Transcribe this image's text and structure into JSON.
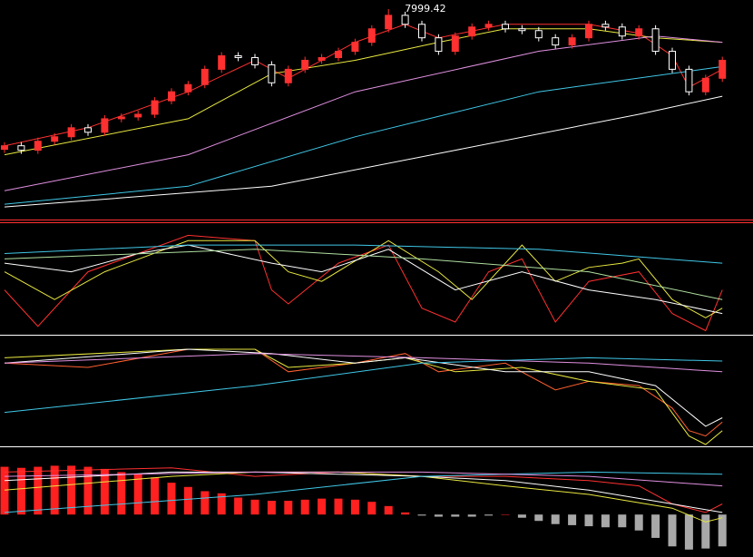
{
  "chart_data": [
    {
      "type": "candlestick",
      "annotation": "7999.42",
      "up_color": "#ff3030",
      "down_color": "#ffffff",
      "ylim": [
        6840,
        8040
      ],
      "open": [
        7220,
        7240,
        7215,
        7265,
        7290,
        7340,
        7315,
        7390,
        7400,
        7415,
        7490,
        7540,
        7580,
        7665,
        7740,
        7730,
        7690,
        7590,
        7665,
        7715,
        7730,
        7765,
        7815,
        7890,
        7965,
        7915,
        7840,
        7765,
        7850,
        7900,
        7915,
        7890,
        7880,
        7840,
        7800,
        7840,
        7915,
        7900,
        7850,
        7890,
        7765,
        7665,
        7540,
        7615
      ],
      "high": [
        7260,
        7260,
        7285,
        7310,
        7360,
        7360,
        7410,
        7420,
        7435,
        7510,
        7560,
        7600,
        7685,
        7760,
        7760,
        7750,
        7710,
        7685,
        7735,
        7750,
        7785,
        7835,
        7910,
        7999.42,
        7985,
        7935,
        7860,
        7870,
        7920,
        7935,
        7935,
        7910,
        7900,
        7860,
        7860,
        7935,
        7935,
        7920,
        7910,
        7910,
        7785,
        7685,
        7635,
        7735
      ],
      "low": [
        7200,
        7195,
        7195,
        7245,
        7270,
        7295,
        7295,
        7370,
        7380,
        7395,
        7470,
        7520,
        7560,
        7645,
        7710,
        7670,
        7570,
        7570,
        7645,
        7695,
        7710,
        7745,
        7795,
        7870,
        7895,
        7820,
        7745,
        7745,
        7830,
        7880,
        7870,
        7860,
        7820,
        7780,
        7780,
        7820,
        7880,
        7830,
        7830,
        7745,
        7645,
        7520,
        7520,
        7595
      ],
      "close": [
        7240,
        7215,
        7265,
        7290,
        7340,
        7315,
        7390,
        7400,
        7415,
        7490,
        7540,
        7580,
        7665,
        7740,
        7730,
        7690,
        7590,
        7665,
        7715,
        7730,
        7765,
        7815,
        7890,
        7965,
        7915,
        7840,
        7765,
        7850,
        7900,
        7915,
        7890,
        7880,
        7840,
        7800,
        7840,
        7915,
        7900,
        7850,
        7890,
        7765,
        7665,
        7540,
        7615,
        7715
      ],
      "series": [
        {
          "color": "#ff3030",
          "x": [
            0,
            5,
            11,
            15,
            17,
            21,
            24,
            26,
            30,
            35,
            38,
            40,
            41,
            43
          ],
          "values": [
            7240,
            7340,
            7540,
            7715,
            7615,
            7815,
            7915,
            7840,
            7915,
            7915,
            7865,
            7740,
            7565,
            7665
          ]
        },
        {
          "color": "#e8e840",
          "x": [
            0,
            11,
            16,
            21,
            26,
            30,
            35,
            39,
            43
          ],
          "values": [
            7190,
            7390,
            7640,
            7715,
            7815,
            7890,
            7890,
            7840,
            7815
          ]
        },
        {
          "color": "#e090e0",
          "x": [
            0,
            11,
            21,
            32,
            39,
            43
          ],
          "values": [
            6990,
            7190,
            7540,
            7765,
            7850,
            7815
          ]
        },
        {
          "color": "#40c8e8",
          "x": [
            0,
            11,
            21,
            32,
            43
          ],
          "values": [
            6915,
            7015,
            7290,
            7540,
            7680
          ]
        },
        {
          "color": "#ffffff",
          "x": [
            0,
            16,
            27,
            38,
            43
          ],
          "values": [
            6900,
            7015,
            7215,
            7415,
            7515
          ]
        }
      ]
    },
    {
      "type": "line",
      "ylim": [
        0,
        100
      ],
      "series": [
        {
          "color": "#ff3030",
          "x": [
            0,
            2,
            5,
            11,
            15,
            16,
            17,
            20,
            23,
            25,
            27,
            29,
            31,
            33,
            35,
            38,
            40,
            42,
            43
          ],
          "values": [
            41,
            7,
            58,
            92,
            87,
            41,
            28,
            66,
            83,
            24,
            11,
            58,
            70,
            11,
            49,
            58,
            19,
            3,
            41
          ]
        },
        {
          "color": "#e8e840",
          "x": [
            0,
            3,
            6,
            11,
            15,
            17,
            19,
            23,
            26,
            28,
            31,
            33,
            35,
            37,
            38,
            40,
            42,
            43
          ],
          "values": [
            58,
            32,
            58,
            87,
            87,
            58,
            49,
            87,
            58,
            32,
            83,
            49,
            62,
            66,
            70,
            32,
            15,
            24
          ]
        },
        {
          "color": "#ffffff",
          "x": [
            0,
            4,
            8,
            11,
            16,
            19,
            23,
            27,
            31,
            35,
            39,
            43
          ],
          "values": [
            66,
            58,
            75,
            83,
            66,
            58,
            79,
            41,
            58,
            41,
            32,
            19
          ]
        },
        {
          "color": "#40c8e8",
          "x": [
            0,
            11,
            21,
            32,
            43
          ],
          "values": [
            75,
            83,
            83,
            79,
            66
          ]
        },
        {
          "color": "#b0e0a0",
          "x": [
            0,
            15,
            25,
            35,
            43
          ],
          "values": [
            70,
            79,
            70,
            58,
            32
          ]
        }
      ]
    },
    {
      "type": "line",
      "ylim": [
        0,
        100
      ],
      "series": [
        {
          "color": "#ff6030",
          "x": [
            0,
            5,
            11,
            15,
            17,
            21,
            24,
            26,
            30,
            33,
            35,
            38,
            40,
            41,
            42,
            43
          ],
          "values": [
            76,
            72,
            89,
            89,
            68,
            76,
            85,
            68,
            76,
            51,
            59,
            55,
            34,
            13,
            8,
            21
          ]
        },
        {
          "color": "#e8e840",
          "x": [
            0,
            11,
            15,
            17,
            21,
            24,
            27,
            31,
            35,
            39,
            41,
            42,
            43
          ],
          "values": [
            81,
            89,
            89,
            72,
            76,
            81,
            68,
            72,
            59,
            51,
            8,
            0,
            13
          ]
        },
        {
          "color": "#ffffff",
          "x": [
            0,
            11,
            16,
            21,
            24,
            30,
            35,
            39,
            42,
            43
          ],
          "values": [
            76,
            89,
            85,
            76,
            81,
            68,
            68,
            55,
            17,
            25
          ]
        },
        {
          "color": "#e090e0",
          "x": [
            0,
            15,
            25,
            35,
            43
          ],
          "values": [
            76,
            85,
            81,
            76,
            68
          ]
        },
        {
          "color": "#40c8e8",
          "x": [
            0,
            15,
            25,
            35,
            43
          ],
          "values": [
            30,
            55,
            76,
            81,
            78
          ]
        }
      ]
    },
    {
      "type": "bar",
      "ylim": [
        -40,
        60
      ],
      "color": "#ff2020",
      "negative_color": "#a8a8a8",
      "values": [
        45,
        44,
        45,
        46,
        46,
        45,
        43,
        40,
        38,
        35,
        30,
        26,
        22,
        20,
        16,
        14,
        13,
        13,
        14,
        15,
        15,
        14,
        12,
        8,
        2,
        -1,
        -2,
        -2,
        -2,
        -1,
        0,
        -3,
        -6,
        -9,
        -10,
        -11,
        -12,
        -12,
        -15,
        -22,
        -30,
        -33,
        -32,
        -30
      ],
      "series": [
        {
          "color": "#ff3030",
          "x": [
            0,
            10,
            15,
            20,
            25,
            30,
            35,
            38,
            40,
            42,
            43
          ],
          "values": [
            40,
            44,
            36,
            40,
            36,
            36,
            32,
            27,
            10,
            2,
            10
          ]
        },
        {
          "color": "#e8e840",
          "x": [
            0,
            10,
            15,
            20,
            25,
            30,
            35,
            40,
            42,
            43
          ],
          "values": [
            23,
            36,
            40,
            40,
            36,
            27,
            19,
            6,
            -7,
            -3
          ]
        },
        {
          "color": "#ffffff",
          "x": [
            0,
            10,
            15,
            20,
            25,
            30,
            35,
            40,
            43
          ],
          "values": [
            32,
            40,
            40,
            38,
            36,
            32,
            23,
            10,
            2
          ]
        },
        {
          "color": "#40c8e8",
          "x": [
            0,
            15,
            25,
            35,
            43
          ],
          "values": [
            2,
            19,
            36,
            40,
            38
          ]
        },
        {
          "color": "#e090e0",
          "x": [
            0,
            15,
            25,
            35,
            43
          ],
          "values": [
            36,
            40,
            40,
            36,
            27
          ]
        }
      ]
    }
  ]
}
